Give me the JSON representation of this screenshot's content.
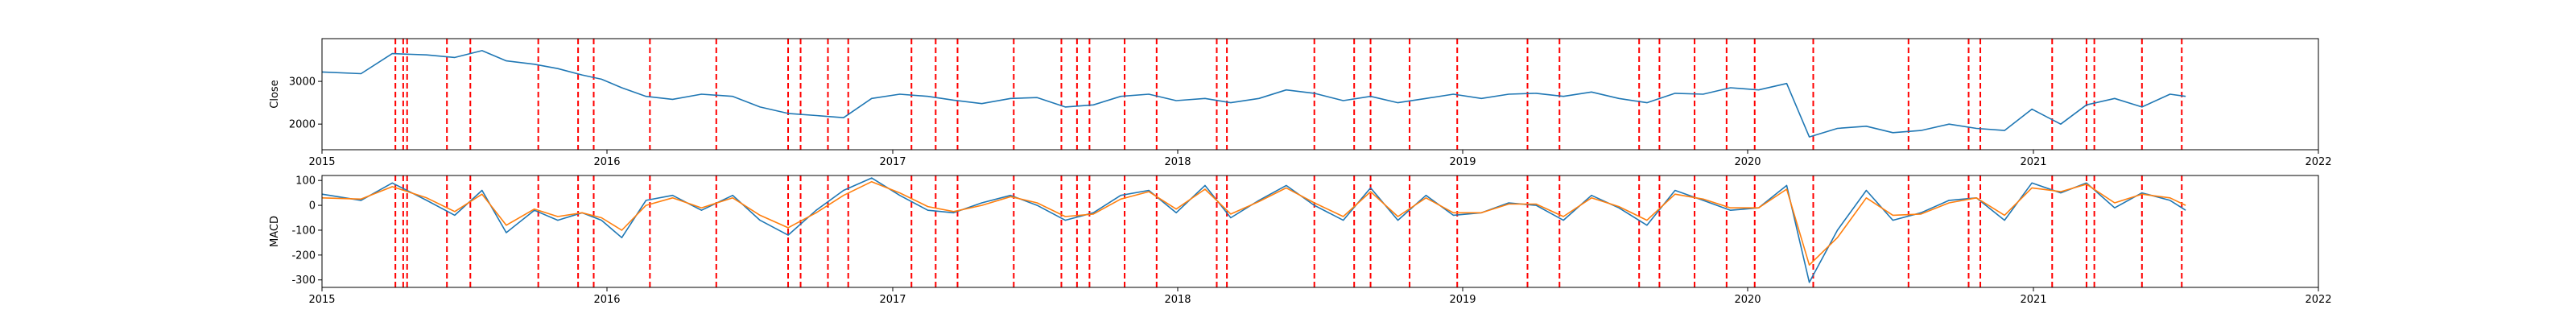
{
  "chart_data": [
    {
      "type": "line",
      "ylabel": "Close",
      "xlim": [
        "2015-01-01",
        "2022-01-01"
      ],
      "ylim": [
        1400,
        4000
      ],
      "xticks": [
        "2015",
        "2016",
        "2017",
        "2018",
        "2019",
        "2020",
        "2021",
        "2022"
      ],
      "yticks": [
        2000,
        3000
      ],
      "grid": false,
      "series": [
        {
          "color": "#1f77b4",
          "x": [
            "2015-01-01",
            "2015-02-20",
            "2015-04-01",
            "2015-05-15",
            "2015-06-20",
            "2015-07-25",
            "2015-08-25",
            "2015-09-30",
            "2015-10-30",
            "2015-11-30",
            "2015-12-25",
            "2016-01-20",
            "2016-02-20",
            "2016-03-25",
            "2016-05-01",
            "2016-06-10",
            "2016-07-15",
            "2016-08-20",
            "2016-09-25",
            "2016-10-30",
            "2016-12-05",
            "2017-01-10",
            "2017-02-15",
            "2017-03-20",
            "2017-04-25",
            "2017-06-01",
            "2017-07-05",
            "2017-08-10",
            "2017-09-15",
            "2017-10-20",
            "2017-11-25",
            "2017-12-30",
            "2018-02-05",
            "2018-03-10",
            "2018-04-15",
            "2018-05-20",
            "2018-06-25",
            "2018-08-01",
            "2018-09-05",
            "2018-10-10",
            "2018-11-15",
            "2018-12-20",
            "2019-01-25",
            "2019-03-01",
            "2019-04-05",
            "2019-05-10",
            "2019-06-15",
            "2019-07-20",
            "2019-08-25",
            "2019-09-30",
            "2019-11-05",
            "2019-12-10",
            "2020-01-15",
            "2020-02-20",
            "2020-03-20",
            "2020-04-25",
            "2020-06-01",
            "2020-07-05",
            "2020-08-10",
            "2020-09-15",
            "2020-10-20",
            "2020-11-25",
            "2020-12-30",
            "2021-02-05",
            "2021-03-10",
            "2021-04-15",
            "2021-05-20",
            "2021-06-25",
            "2021-07-15"
          ],
          "values": [
            3220,
            3180,
            3650,
            3620,
            3560,
            3720,
            3480,
            3400,
            3300,
            3150,
            3050,
            2850,
            2650,
            2580,
            2700,
            2650,
            2400,
            2250,
            2200,
            2150,
            2600,
            2700,
            2650,
            2560,
            2480,
            2600,
            2620,
            2400,
            2450,
            2650,
            2700,
            2550,
            2600,
            2500,
            2600,
            2800,
            2720,
            2550,
            2650,
            2500,
            2600,
            2700,
            2600,
            2700,
            2720,
            2650,
            2750,
            2600,
            2500,
            2720,
            2700,
            2850,
            2800,
            2950,
            1700,
            1900,
            1950,
            1800,
            1850,
            2000,
            1900,
            1850,
            2350,
            2000,
            2450,
            2600,
            2400,
            2700,
            2650
          ]
        }
      ]
    },
    {
      "type": "line",
      "ylabel": "MACD",
      "xlim": [
        "2015-01-01",
        "2022-01-01"
      ],
      "ylim": [
        -330,
        120
      ],
      "xticks": [
        "2015",
        "2016",
        "2017",
        "2018",
        "2019",
        "2020",
        "2021",
        "2022"
      ],
      "yticks": [
        100,
        0,
        -100,
        -200,
        -300
      ],
      "grid": false,
      "series": [
        {
          "color": "#1f77b4",
          "x": [
            "2015-01-01",
            "2015-02-20",
            "2015-04-01",
            "2015-05-15",
            "2015-06-20",
            "2015-07-25",
            "2015-08-25",
            "2015-09-30",
            "2015-10-30",
            "2015-11-30",
            "2015-12-25",
            "2016-01-20",
            "2016-02-20",
            "2016-03-25",
            "2016-05-01",
            "2016-06-10",
            "2016-07-15",
            "2016-08-20",
            "2016-09-25",
            "2016-10-30",
            "2016-12-05",
            "2017-01-10",
            "2017-02-15",
            "2017-03-20",
            "2017-04-25",
            "2017-06-01",
            "2017-07-05",
            "2017-08-10",
            "2017-09-15",
            "2017-10-20",
            "2017-11-25",
            "2017-12-30",
            "2018-02-05",
            "2018-03-10",
            "2018-04-15",
            "2018-05-20",
            "2018-06-25",
            "2018-08-01",
            "2018-09-05",
            "2018-10-10",
            "2018-11-15",
            "2018-12-20",
            "2019-01-25",
            "2019-03-01",
            "2019-04-05",
            "2019-05-10",
            "2019-06-15",
            "2019-07-20",
            "2019-08-25",
            "2019-09-30",
            "2019-11-05",
            "2019-12-10",
            "2020-01-15",
            "2020-02-20",
            "2020-03-20",
            "2020-04-25",
            "2020-06-01",
            "2020-07-05",
            "2020-08-10",
            "2020-09-15",
            "2020-10-20",
            "2020-11-25",
            "2020-12-30",
            "2021-02-05",
            "2021-03-10",
            "2021-04-15",
            "2021-05-20",
            "2021-06-25",
            "2021-07-15"
          ],
          "values": [
            45,
            20,
            90,
            20,
            -40,
            60,
            -110,
            -20,
            -60,
            -30,
            -60,
            -130,
            20,
            40,
            -20,
            40,
            -60,
            -120,
            -20,
            60,
            110,
            40,
            -20,
            -30,
            10,
            40,
            0,
            -60,
            -30,
            40,
            60,
            -30,
            80,
            -50,
            20,
            80,
            0,
            -60,
            70,
            -60,
            40,
            -40,
            -30,
            10,
            0,
            -60,
            40,
            -10,
            -80,
            60,
            20,
            -20,
            -10,
            80,
            -310,
            -100,
            60,
            -60,
            -30,
            20,
            30,
            -60,
            90,
            50,
            90,
            -10,
            50,
            20,
            -20
          ]
        },
        {
          "color": "#ff7f0e",
          "x": [
            "2015-01-01",
            "2015-02-20",
            "2015-04-01",
            "2015-05-15",
            "2015-06-20",
            "2015-07-25",
            "2015-08-25",
            "2015-09-30",
            "2015-10-30",
            "2015-11-30",
            "2015-12-25",
            "2016-01-20",
            "2016-02-20",
            "2016-03-25",
            "2016-05-01",
            "2016-06-10",
            "2016-07-15",
            "2016-08-20",
            "2016-09-25",
            "2016-10-30",
            "2016-12-05",
            "2017-01-10",
            "2017-02-15",
            "2017-03-20",
            "2017-04-25",
            "2017-06-01",
            "2017-07-05",
            "2017-08-10",
            "2017-09-15",
            "2017-10-20",
            "2017-11-25",
            "2017-12-30",
            "2018-02-05",
            "2018-03-10",
            "2018-04-15",
            "2018-05-20",
            "2018-06-25",
            "2018-08-01",
            "2018-09-05",
            "2018-10-10",
            "2018-11-15",
            "2018-12-20",
            "2019-01-25",
            "2019-03-01",
            "2019-04-05",
            "2019-05-10",
            "2019-06-15",
            "2019-07-20",
            "2019-08-25",
            "2019-09-30",
            "2019-11-05",
            "2019-12-10",
            "2020-01-15",
            "2020-02-20",
            "2020-03-20",
            "2020-04-25",
            "2020-06-01",
            "2020-07-05",
            "2020-08-10",
            "2020-09-15",
            "2020-10-20",
            "2020-11-25",
            "2020-12-30",
            "2021-02-05",
            "2021-03-10",
            "2021-04-15",
            "2021-05-20",
            "2021-06-25",
            "2021-07-15"
          ],
          "values": [
            30,
            25,
            75,
            30,
            -25,
            45,
            -80,
            -15,
            -45,
            -30,
            -50,
            -100,
            0,
            30,
            -10,
            30,
            -40,
            -90,
            -30,
            40,
            95,
            50,
            -5,
            -25,
            0,
            35,
            10,
            -45,
            -35,
            25,
            55,
            -15,
            65,
            -35,
            15,
            70,
            10,
            -45,
            55,
            -45,
            30,
            -30,
            -30,
            5,
            5,
            -45,
            30,
            -5,
            -60,
            45,
            25,
            -10,
            -10,
            65,
            -240,
            -130,
            30,
            -40,
            -35,
            10,
            30,
            -40,
            70,
            55,
            85,
            10,
            45,
            30,
            0
          ]
        }
      ]
    }
  ],
  "event_line_color": "#ff0000",
  "event_dates": [
    "2015-04-05",
    "2015-04-15",
    "2015-04-20",
    "2015-06-10",
    "2015-07-10",
    "2015-10-05",
    "2015-11-25",
    "2015-12-15",
    "2016-02-25",
    "2016-05-20",
    "2016-08-20",
    "2016-09-05",
    "2016-10-10",
    "2016-11-05",
    "2017-01-25",
    "2017-02-25",
    "2017-03-25",
    "2017-06-05",
    "2017-08-05",
    "2017-08-25",
    "2017-09-10",
    "2017-10-25",
    "2017-12-05",
    "2018-02-20",
    "2018-03-05",
    "2018-06-25",
    "2018-08-15",
    "2018-09-05",
    "2018-10-25",
    "2018-12-25",
    "2019-03-25",
    "2019-05-05",
    "2019-08-15",
    "2019-09-10",
    "2019-10-25",
    "2019-12-05",
    "2020-01-10",
    "2020-03-25",
    "2020-07-25",
    "2020-10-10",
    "2020-10-25",
    "2021-01-25",
    "2021-03-10",
    "2021-03-20",
    "2021-05-20",
    "2021-07-10"
  ]
}
